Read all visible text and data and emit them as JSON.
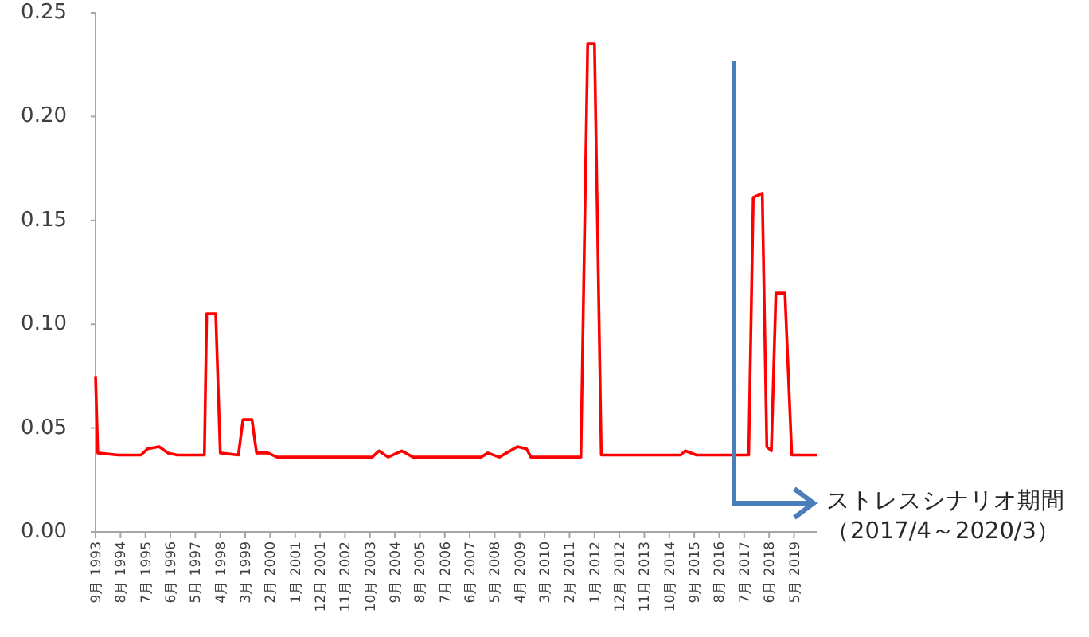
{
  "chart_data": {
    "type": "line",
    "color": "#ff0000",
    "xlim": [
      "1993-09",
      "2020-03"
    ],
    "ylim": [
      0,
      0.25
    ],
    "yticks": [
      {
        "value": 0,
        "label": "0.00"
      },
      {
        "value": 0.05,
        "label": "0.05"
      },
      {
        "value": 0.1,
        "label": "0.10"
      },
      {
        "value": 0.15,
        "label": "0.15"
      },
      {
        "value": 0.2,
        "label": "0.20"
      },
      {
        "value": 0.25,
        "label": "0.25"
      }
    ],
    "xticks": [
      {
        "value": "1993-09",
        "label": "9月 1993"
      },
      {
        "value": "1994-08",
        "label": "8月 1994"
      },
      {
        "value": "1995-07",
        "label": "7月 1995"
      },
      {
        "value": "1996-06",
        "label": "6月 1996"
      },
      {
        "value": "1997-05",
        "label": "5月 1997"
      },
      {
        "value": "1998-04",
        "label": "4月 1998"
      },
      {
        "value": "1999-03",
        "label": "3月 1999"
      },
      {
        "value": "2000-02",
        "label": "2月 2000"
      },
      {
        "value": "2001-01",
        "label": "1月 2001"
      },
      {
        "value": "2001-12",
        "label": "12月 2001"
      },
      {
        "value": "2002-11",
        "label": "11月 2002"
      },
      {
        "value": "2003-10",
        "label": "10月 2003"
      },
      {
        "value": "2004-09",
        "label": "9月 2004"
      },
      {
        "value": "2005-08",
        "label": "8月 2005"
      },
      {
        "value": "2006-07",
        "label": "7月 2006"
      },
      {
        "value": "2007-06",
        "label": "6月 2007"
      },
      {
        "value": "2008-05",
        "label": "5月 2008"
      },
      {
        "value": "2009-04",
        "label": "4月 2009"
      },
      {
        "value": "2010-03",
        "label": "3月 2010"
      },
      {
        "value": "2011-02",
        "label": "2月 2011"
      },
      {
        "value": "2012-01",
        "label": "1月 2012"
      },
      {
        "value": "2012-12",
        "label": "12月 2012"
      },
      {
        "value": "2013-11",
        "label": "11月 2013"
      },
      {
        "value": "2014-10",
        "label": "10月 2014"
      },
      {
        "value": "2015-09",
        "label": "9月 2015"
      },
      {
        "value": "2016-08",
        "label": "8月 2016"
      },
      {
        "value": "2017-07",
        "label": "7月 2017"
      },
      {
        "value": "2018-06",
        "label": "6月 2018"
      },
      {
        "value": "2019-05",
        "label": "5月 2019"
      }
    ],
    "x": [
      "1993-09",
      "1993-10",
      "1994-07",
      "1995-05",
      "1995-08",
      "1996-01",
      "1996-05",
      "1996-09",
      "1997-09",
      "1997-10",
      "1998-02",
      "1998-04",
      "1998-12",
      "1999-02",
      "1999-06",
      "1999-08",
      "2000-01",
      "2000-05",
      "2003-11",
      "2004-02",
      "2004-06",
      "2004-12",
      "2005-05",
      "2007-11",
      "2008-02",
      "2008-07",
      "2009-03",
      "2009-07",
      "2009-09",
      "2011-07",
      "2011-10",
      "2012-01",
      "2012-04",
      "2015-03",
      "2015-05",
      "2015-10",
      "2017-09",
      "2017-11",
      "2018-03",
      "2018-05",
      "2018-07",
      "2018-09",
      "2019-01",
      "2019-04",
      "2020-03"
    ],
    "values": [
      0.075,
      0.038,
      0.037,
      0.037,
      0.04,
      0.041,
      0.038,
      0.037,
      0.037,
      0.105,
      0.105,
      0.038,
      0.037,
      0.054,
      0.054,
      0.038,
      0.038,
      0.036,
      0.036,
      0.039,
      0.036,
      0.039,
      0.036,
      0.036,
      0.038,
      0.036,
      0.041,
      0.04,
      0.036,
      0.036,
      0.235,
      0.235,
      0.037,
      0.037,
      0.039,
      0.037,
      0.037,
      0.161,
      0.163,
      0.041,
      0.039,
      0.115,
      0.115,
      0.037,
      0.037
    ],
    "annotations": [
      "ストレスシナリオ期間（2017/4～2020/3）"
    ],
    "grid": false,
    "marker": "none",
    "line_style": "solid"
  }
}
